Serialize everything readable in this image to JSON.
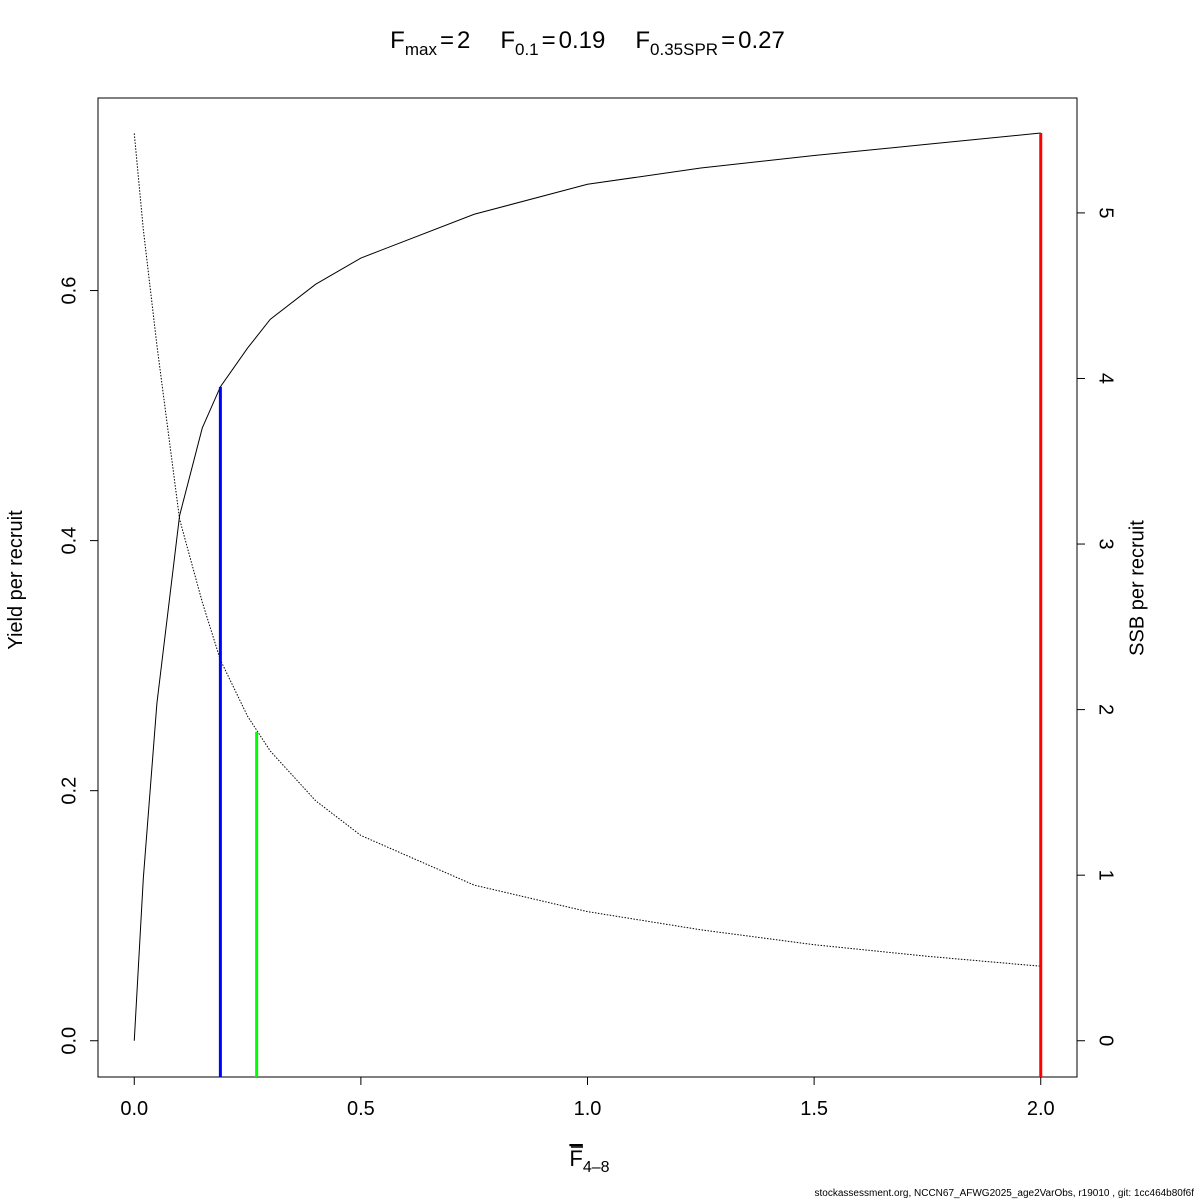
{
  "chart_data": {
    "type": "line",
    "reference_lines": [
      {
        "symbol": "F",
        "subscript": "max",
        "relation": "=",
        "x": 2,
        "top": 0.726,
        "color": "#ff0000"
      },
      {
        "symbol": "F",
        "subscript": "0.1",
        "relation": "=",
        "x": 0.19,
        "top": 0.523,
        "color": "#0000ff"
      },
      {
        "symbol": "F",
        "subscript": "0.35SPR",
        "relation": "=",
        "x": 0.27,
        "top": 0.247,
        "color": "#00ff00"
      }
    ],
    "xlabel": {
      "main": "F",
      "sub": "4–8"
    },
    "ylabel": "Yield per recruit",
    "y2label": "SSB per recruit",
    "footer": "stockassessment.org, NCCN67_AFWG2025_age2VarObs, r19010 , git: 1cc464b80f6f",
    "x": [
      0,
      0.02,
      0.05,
      0.1,
      0.15,
      0.19,
      0.25,
      0.3,
      0.4,
      0.5,
      0.75,
      1.0,
      1.25,
      1.5,
      1.75,
      2.0
    ],
    "series": [
      {
        "color": "#000000",
        "dash": "solid",
        "values": [
          0,
          0.13,
          0.27,
          0.42,
          0.49,
          0.523,
          0.554,
          0.577,
          0.605,
          0.626,
          0.661,
          0.685,
          0.698,
          0.708,
          0.717,
          0.726
        ]
      },
      {
        "color": "#000000",
        "dash": "dotted",
        "axis": "y2",
        "values": [
          5.48,
          4.9,
          4.2,
          3.15,
          2.65,
          2.3,
          1.96,
          1.75,
          1.45,
          1.24,
          0.94,
          0.78,
          0.67,
          0.58,
          0.51,
          0.45
        ]
      }
    ],
    "xlim": [
      -0.08,
      2.08
    ],
    "ylim": [
      -0.029,
      0.754
    ],
    "y2lim": [
      -0.219,
      5.694
    ],
    "xticks": [
      {
        "value": 0,
        "label": "0.0"
      },
      0.5,
      {
        "value": 1,
        "label": "1.0"
      },
      1.5,
      {
        "value": 2,
        "label": "2.0"
      }
    ],
    "yticks": [
      {
        "value": 0,
        "label": "0.0"
      },
      0.2,
      0.4,
      0.6
    ],
    "y2ticks": [
      0,
      1,
      2,
      3,
      4,
      5
    ]
  }
}
